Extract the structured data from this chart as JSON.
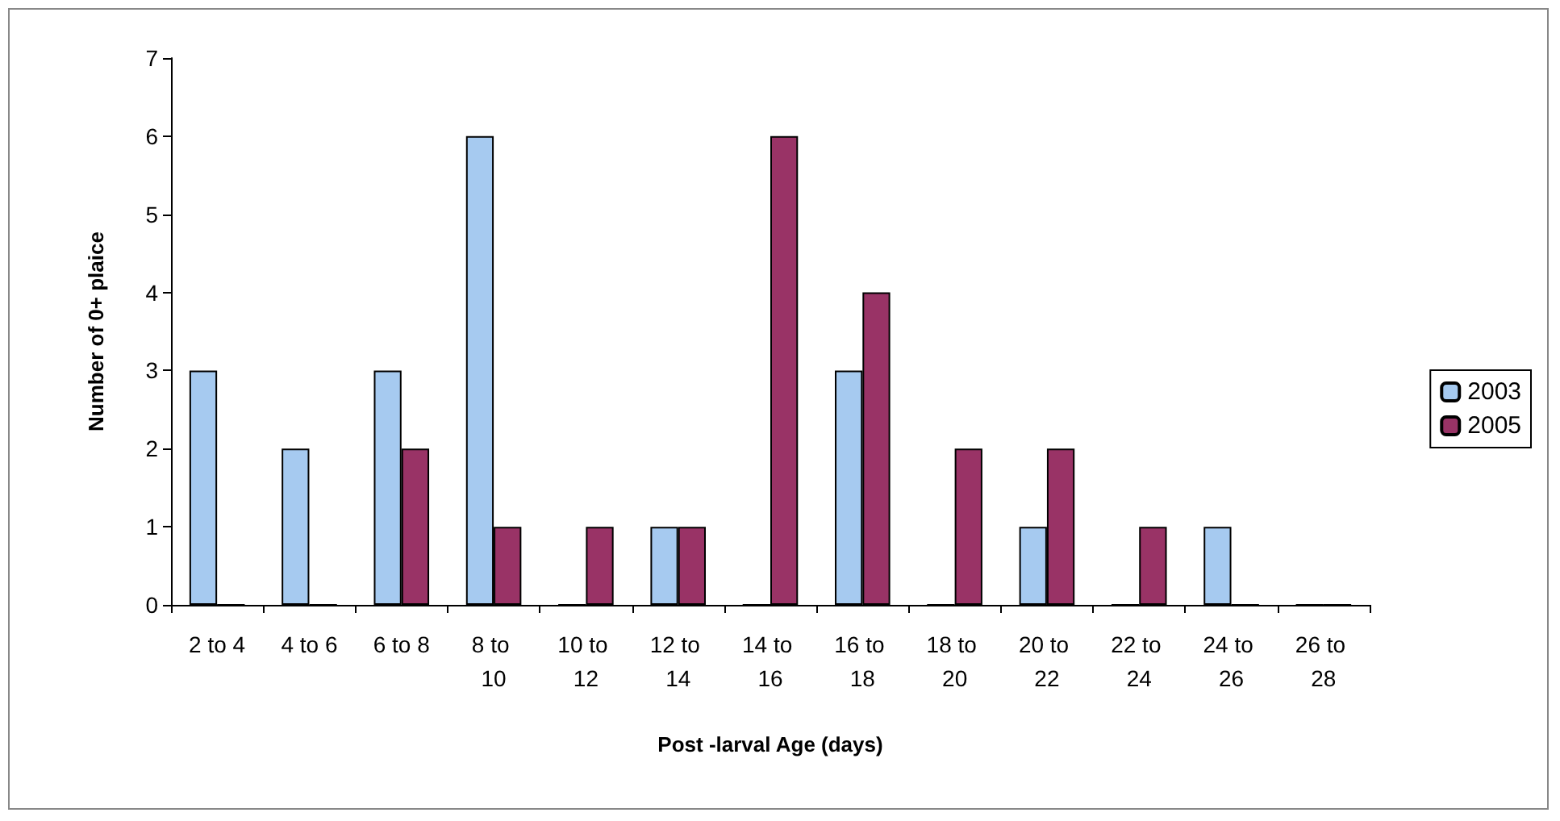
{
  "chart_data": {
    "type": "bar",
    "xlabel": "Post -larval Age (days)",
    "ylabel": "Number of 0+ plaice",
    "categories": [
      "2 to 4",
      "4 to 6",
      "6 to 8",
      "8 to 10",
      "10 to 12",
      "12 to 14",
      "14 to 16",
      "16 to 18",
      "18 to 20",
      "20 to 22",
      "22 to 24",
      "24 to 26",
      "26 to 28"
    ],
    "series": [
      {
        "name": "2003",
        "color": "#a6caf0",
        "values": [
          3,
          2,
          3,
          6,
          0,
          1,
          0,
          3,
          0,
          1,
          0,
          1,
          0
        ]
      },
      {
        "name": "2005",
        "color": "#993366",
        "values": [
          0,
          0,
          2,
          1,
          1,
          1,
          6,
          4,
          2,
          2,
          1,
          0,
          0
        ]
      }
    ],
    "ylim": [
      0,
      7
    ],
    "yticks": [
      0,
      1,
      2,
      3,
      4,
      5,
      6,
      7
    ],
    "grid": false,
    "legend": "right"
  }
}
